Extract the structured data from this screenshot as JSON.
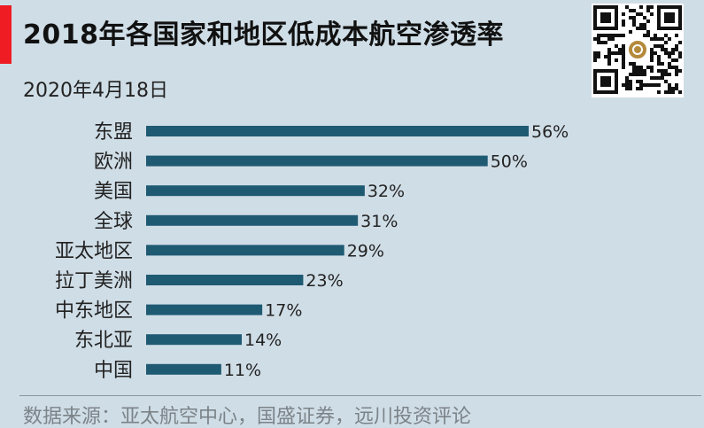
{
  "header": {
    "title": "2018年各国家和地区低成本航空渗透率",
    "date": "2020年4月18日"
  },
  "footer": {
    "source": "数据来源：亚太航空中心，国盛证券，远川投资评论"
  },
  "colors": {
    "background": "#cfdde6",
    "accent": "#ef1c23",
    "bar": "#1f5a73"
  },
  "icons": {
    "qr": "qr-code"
  },
  "chart_data": {
    "type": "bar",
    "orientation": "horizontal",
    "title": "2018年各国家和地区低成本航空渗透率",
    "xlabel": "",
    "ylabel": "",
    "categories": [
      "东盟",
      "欧洲",
      "美国",
      "全球",
      "亚太地区",
      "拉丁美洲",
      "中东地区",
      "东北亚",
      "中国"
    ],
    "values": [
      56,
      50,
      32,
      31,
      29,
      23,
      17,
      14,
      11
    ],
    "value_labels": [
      "56%",
      "50%",
      "32%",
      "31%",
      "29%",
      "23%",
      "17%",
      "14%",
      "11%"
    ],
    "unit": "%",
    "xlim": [
      0,
      56
    ],
    "grid": false,
    "legend": "none"
  }
}
